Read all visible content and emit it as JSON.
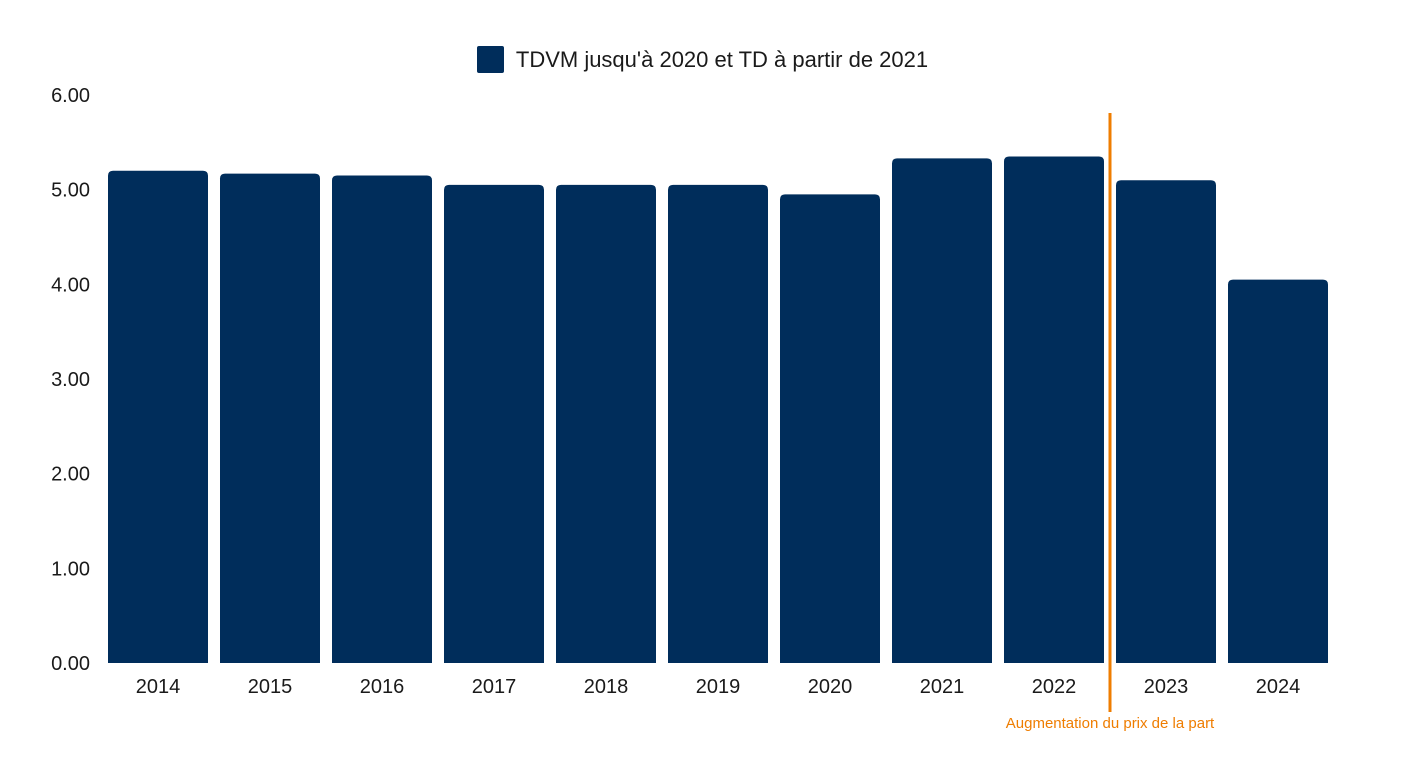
{
  "chart_data": {
    "type": "bar",
    "categories": [
      "2014",
      "2015",
      "2016",
      "2017",
      "2018",
      "2019",
      "2020",
      "2021",
      "2022",
      "2023",
      "2024"
    ],
    "series": [
      {
        "name": "TDVM jusqu'à 2020 et TD à partir de 2021",
        "values": [
          5.2,
          5.17,
          5.15,
          5.05,
          5.05,
          5.05,
          4.95,
          5.33,
          5.35,
          5.1,
          4.05
        ],
        "color": "#002d5b"
      }
    ],
    "ylim": [
      0,
      6
    ],
    "yticks": [
      "0.00",
      "1.00",
      "2.00",
      "3.00",
      "4.00",
      "5.00",
      "6.00"
    ],
    "grid": false,
    "legend_position": "top-center",
    "annotation": {
      "text": "Augmentation du prix de la part",
      "between": [
        "2022",
        "2023"
      ],
      "color": "#ef7d00"
    }
  }
}
